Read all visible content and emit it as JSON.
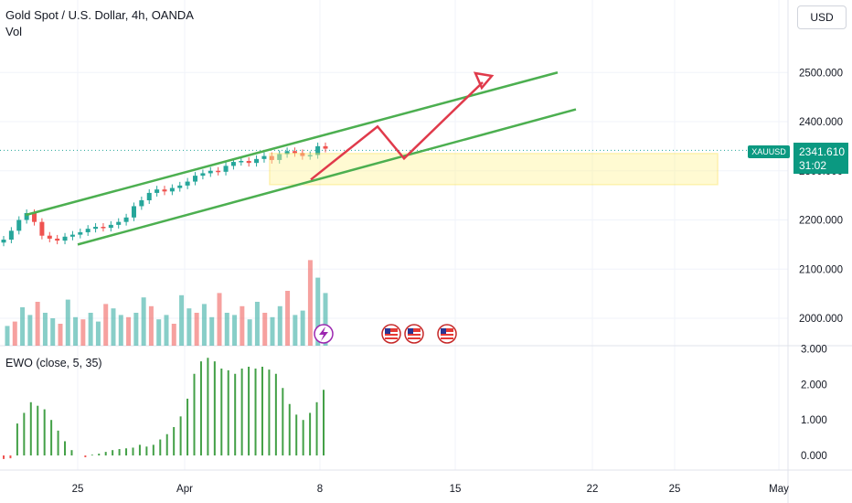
{
  "header": {
    "title": "Gold Spot / U.S. Dollar, 4h, OANDA",
    "vol_label": "Vol",
    "currency": "USD"
  },
  "price_tag": {
    "symbol": "XAUUSD",
    "price": "2341.610",
    "countdown": "31:02"
  },
  "ewo": {
    "label": "EWO (close, 5, 35)"
  },
  "colors": {
    "up": "#26a69a",
    "down": "#ef5350",
    "channel": "#4caf50",
    "arrow": "#e03a4b",
    "zone": "#fff59d",
    "zone_border": "#fbe14c",
    "ewo": "#43a047"
  },
  "icons": [
    "lightning-icon",
    "us-flag-icon",
    "us-flag-icon",
    "us-flag-icon"
  ],
  "chart_data": [
    {
      "type": "line",
      "title": "Gold Spot / U.S. Dollar, 4h, OANDA",
      "x_ticks": [
        "25",
        "Apr",
        "8",
        "15",
        "22",
        "25",
        "May"
      ],
      "y_ticks": [
        2000,
        2100,
        2200,
        2300,
        2400,
        2500
      ],
      "y_tick_labels": [
        "2000.000",
        "2100.000",
        "2200.000",
        "2300.000",
        "2400.000",
        "2500.000"
      ],
      "ylim": [
        1970,
        2560
      ],
      "series": [
        {
          "values": [
            2160,
            2178,
            2200,
            2214,
            2196,
            2168,
            2162,
            2158,
            2166,
            2170,
            2175,
            2182,
            2186,
            2184,
            2190,
            2196,
            2205,
            2228,
            2240,
            2255,
            2262,
            2258,
            2265,
            2270,
            2278,
            2290,
            2295,
            2300,
            2298,
            2310,
            2318,
            2320,
            2316,
            2324,
            2330,
            2322,
            2334,
            2340,
            2336,
            2330,
            2332,
            2350,
            2345
          ]
        }
      ],
      "annotations": {
        "channel_upper": [
          [
            2210,
            "start"
          ],
          [
            2500,
            "end"
          ]
        ],
        "channel_lower": [
          [
            2150,
            "start"
          ],
          [
            2425,
            "end"
          ]
        ],
        "zone": [
          2272,
          2335
        ],
        "projected_path": [
          2282,
          2390,
          2325,
          2480
        ]
      },
      "current_price": 2341.61
    },
    {
      "type": "bar",
      "title": "Vol",
      "values": [
        18,
        22,
        35,
        28,
        40,
        30,
        25,
        20,
        42,
        26,
        24,
        30,
        22,
        38,
        34,
        28,
        26,
        30,
        44,
        36,
        24,
        28,
        20,
        46,
        34,
        30,
        38,
        26,
        48,
        30,
        28,
        36,
        24,
        40,
        30,
        26,
        36,
        50,
        28,
        32,
        78,
        62,
        48
      ]
    },
    {
      "type": "bar",
      "title": "EWO (close, 5, 35)",
      "y_ticks": [
        0,
        1,
        2,
        3
      ],
      "y_tick_labels": [
        "0.000",
        "1.000",
        "2.000",
        "3.000"
      ],
      "ylim": [
        -0.3,
        3.1
      ],
      "values": [
        -0.1,
        -0.08,
        0.9,
        1.2,
        1.5,
        1.4,
        1.3,
        1.0,
        0.7,
        0.4,
        0.15,
        0.0,
        -0.05,
        0.02,
        0.05,
        0.1,
        0.15,
        0.18,
        0.2,
        0.22,
        0.3,
        0.25,
        0.3,
        0.45,
        0.6,
        0.8,
        1.1,
        1.6,
        2.3,
        2.65,
        2.75,
        2.65,
        2.45,
        2.4,
        2.3,
        2.45,
        2.5,
        2.45,
        2.5,
        2.42,
        2.3,
        1.9,
        1.45,
        1.15,
        1.0,
        1.2,
        1.5,
        1.85
      ]
    }
  ]
}
